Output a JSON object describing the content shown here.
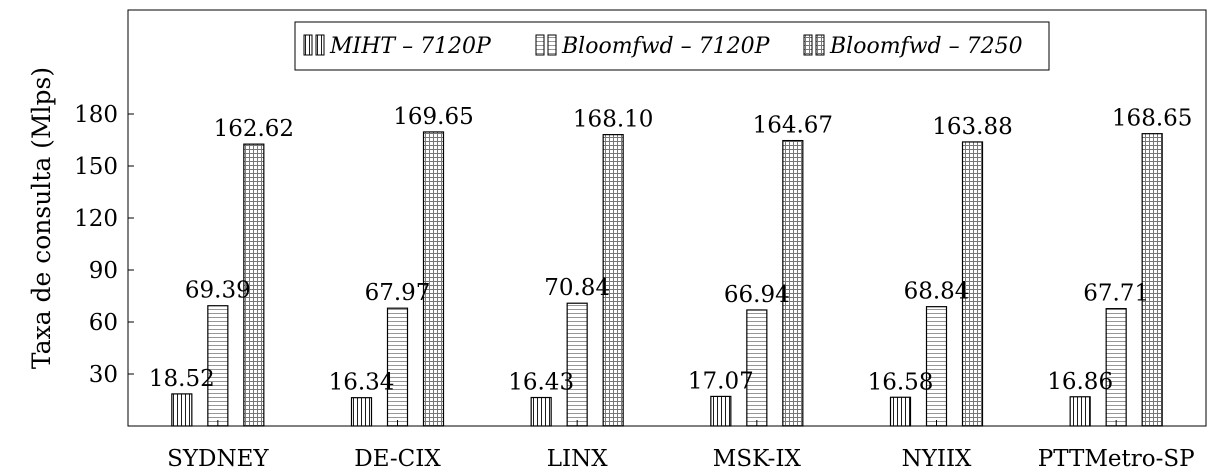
{
  "chart_data": {
    "type": "bar",
    "categories": [
      "SYDNEY",
      "DE-CIX",
      "LINX",
      "MSK-IX",
      "NYIIX",
      "PTTMetro-SP"
    ],
    "series": [
      {
        "name": "MIHT – 7120P",
        "values": [
          18.52,
          16.34,
          16.43,
          17.07,
          16.58,
          16.86
        ],
        "color": "#0000ff",
        "fill": "#ffffff",
        "pattern": "vertical-lines"
      },
      {
        "name": "Bloomfwd – 7120P",
        "values": [
          69.39,
          67.97,
          70.84,
          66.94,
          68.84,
          67.71
        ],
        "color": "#ff8000",
        "fill": "#ffffff",
        "pattern": "horizontal-lines"
      },
      {
        "name": "Bloomfwd – 7250",
        "values": [
          162.62,
          169.65,
          168.1,
          164.67,
          163.88,
          168.65
        ],
        "color": "#00cc00",
        "fill": "#ffffff",
        "pattern": "grid"
      }
    ],
    "data_labels": [
      [
        "18.52",
        "69.39",
        "162.62"
      ],
      [
        "16.34",
        "67.97",
        "169.65"
      ],
      [
        "16.43",
        "70.84",
        "168.10"
      ],
      [
        "17.07",
        "66.94",
        "164.67"
      ],
      [
        "16.58",
        "68.84",
        "163.88"
      ],
      [
        "16.86",
        "67.71",
        "168.65"
      ]
    ],
    "ylabel": "Taxa de consulta (Mlps)",
    "xlabel": "",
    "yticks": [
      30,
      60,
      90,
      120,
      150,
      180
    ],
    "ylim": [
      0,
      240
    ],
    "grid": false,
    "legend": "top-center"
  }
}
